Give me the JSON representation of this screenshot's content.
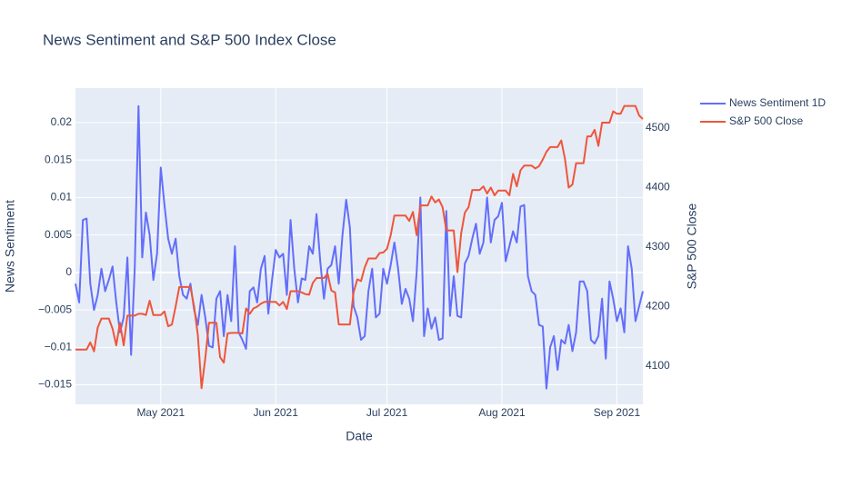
{
  "chart_data": {
    "type": "line",
    "title": "News Sentiment and S&P 500 Index Close",
    "x_label": "Date",
    "y_label": "News Sentiment",
    "y2_label": "S&P 500 Close",
    "grid": true,
    "legend": "top-right-outside",
    "xlim": [
      0,
      153
    ],
    "xticks": [
      {
        "value": 23,
        "label": "May 2021"
      },
      {
        "value": 54,
        "label": "Jun 2021"
      },
      {
        "value": 84,
        "label": "Jul 2021"
      },
      {
        "value": 115,
        "label": "Aug 2021"
      },
      {
        "value": 146,
        "label": "Sep 2021"
      }
    ],
    "ylim": [
      -0.0176,
      0.0246
    ],
    "yticks": [
      {
        "value": -0.015,
        "label": "−0.015"
      },
      {
        "value": -0.01,
        "label": "−0.01"
      },
      {
        "value": -0.005,
        "label": "−0.005"
      },
      0,
      0.005,
      0.01,
      0.015,
      0.02
    ],
    "y2lim": [
      4036,
      4567
    ],
    "y2ticks": [
      4100,
      4200,
      4300,
      4400,
      4500
    ],
    "series": [
      {
        "name": "News Sentiment 1D",
        "color": "#636efa",
        "axis": "y",
        "values": [
          -0.0015,
          -0.004,
          0.007,
          0.0072,
          -0.0015,
          -0.005,
          -0.003,
          0.0005,
          -0.0025,
          -0.001,
          0.0008,
          -0.004,
          -0.008,
          -0.006,
          0.002,
          -0.011,
          0.0008,
          0.0222,
          0.002,
          0.008,
          0.005,
          -0.001,
          0.0025,
          0.014,
          0.009,
          0.0045,
          0.0025,
          0.0045,
          -0.0005,
          -0.003,
          -0.0035,
          -0.0015,
          -0.005,
          -0.007,
          -0.003,
          -0.006,
          -0.0098,
          -0.01,
          -0.0035,
          -0.0025,
          -0.0085,
          -0.003,
          -0.0065,
          0.0035,
          -0.008,
          -0.009,
          -0.0102,
          -0.0025,
          -0.002,
          -0.004,
          0.0005,
          0.0022,
          -0.0055,
          -0.001,
          0.003,
          0.002,
          0.0025,
          -0.003,
          0.007,
          0.0005,
          -0.004,
          -0.0008,
          -0.001,
          0.0035,
          0.0025,
          0.0078,
          0.0015,
          -0.0035,
          0.0005,
          0.001,
          0.0035,
          -0.0015,
          0.005,
          0.0097,
          0.006,
          -0.0045,
          -0.006,
          -0.009,
          -0.0085,
          -0.0025,
          0.0005,
          -0.006,
          -0.0055,
          0.0005,
          -0.0015,
          0.001,
          0.004,
          0.0005,
          -0.0042,
          -0.0022,
          -0.0035,
          -0.0065,
          0.0,
          0.01,
          -0.0085,
          -0.0048,
          -0.0075,
          -0.006,
          -0.009,
          -0.0088,
          0.0082,
          -0.0058,
          -0.0005,
          -0.0058,
          -0.006,
          0.0012,
          0.0022,
          0.0045,
          0.0065,
          0.0025,
          0.004,
          0.01,
          0.004,
          0.007,
          0.0075,
          0.0093,
          0.0015,
          0.0035,
          0.0055,
          0.004,
          0.0088,
          0.009,
          -0.0005,
          -0.0025,
          -0.003,
          -0.007,
          -0.0072,
          -0.0155,
          -0.01,
          -0.0085,
          -0.013,
          -0.009,
          -0.0095,
          -0.007,
          -0.0105,
          -0.008,
          -0.0012,
          -0.0012,
          -0.0025,
          -0.009,
          -0.0095,
          -0.0085,
          -0.0035,
          -0.0115,
          -0.0012,
          -0.0035,
          -0.0065,
          -0.0048,
          -0.008,
          0.0035,
          0.0005,
          -0.0065,
          -0.0045,
          -0.0025
        ]
      },
      {
        "name": "S&P 500 Close",
        "color": "#EF553B",
        "axis": "y2",
        "values": [
          4128,
          4128,
          4128,
          4128,
          4140,
          4125,
          4165,
          4180,
          4180,
          4180,
          4163,
          4135,
          4173,
          4135,
          4185,
          4185,
          4185,
          4188,
          4188,
          4186,
          4210,
          4186,
          4186,
          4186,
          4192,
          4167,
          4170,
          4200,
          4233,
          4233,
          4233,
          4233,
          4200,
          4152,
          4063,
          4113,
          4173,
          4173,
          4173,
          4115,
          4106,
          4155,
          4156,
          4156,
          4156,
          4155,
          4197,
          4188,
          4197,
          4200,
          4205,
          4208,
          4208,
          4208,
          4208,
          4202,
          4208,
          4196,
          4226,
          4226,
          4226,
          4224,
          4221,
          4220,
          4240,
          4248,
          4248,
          4248,
          4255,
          4227,
          4224,
          4170,
          4170,
          4170,
          4170,
          4224,
          4246,
          4243,
          4266,
          4281,
          4281,
          4281,
          4290,
          4291,
          4297,
          4320,
          4353,
          4353,
          4353,
          4353,
          4344,
          4359,
          4320,
          4370,
          4370,
          4370,
          4385,
          4375,
          4380,
          4367,
          4328,
          4328,
          4328,
          4258,
          4323,
          4358,
          4367,
          4396,
          4396,
          4396,
          4402,
          4390,
          4400,
          4387,
          4395,
          4395,
          4395,
          4387,
          4423,
          4402,
          4429,
          4437,
          4437,
          4437,
          4432,
          4436,
          4447,
          4460,
          4468,
          4468,
          4468,
          4479,
          4448,
          4400,
          4405,
          4441,
          4441,
          4441,
          4486,
          4486,
          4497,
          4470,
          4509,
          4509,
          4509,
          4528,
          4524,
          4524,
          4537,
          4537,
          4537,
          4537,
          4521,
          4515
        ]
      }
    ]
  }
}
